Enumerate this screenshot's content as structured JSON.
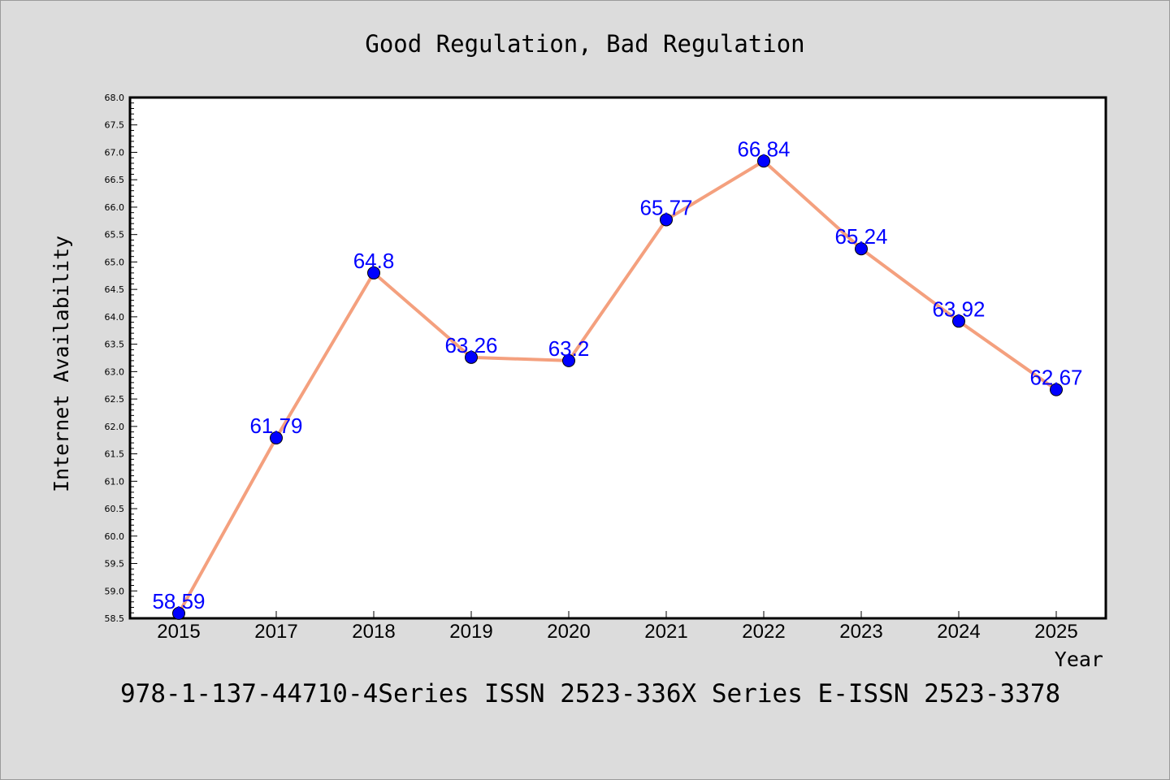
{
  "chart_data": {
    "type": "line",
    "title": "Good Regulation, Bad Regulation",
    "xlabel": "Year",
    "ylabel": "Internet Availability",
    "categories": [
      "2015",
      "2017",
      "2018",
      "2019",
      "2020",
      "2021",
      "2022",
      "2023",
      "2024",
      "2025"
    ],
    "series": [
      {
        "values": [
          58.59,
          61.79,
          64.8,
          63.26,
          63.2,
          65.77,
          66.84,
          65.24,
          63.92,
          62.67
        ],
        "labels": [
          "58.59",
          "61.79",
          "64.8",
          "63.26",
          "63.2",
          "65.77",
          "66.84",
          "65.24",
          "63.92",
          "62.67"
        ],
        "line_color": "#f4a07e",
        "marker_color": "#0000ff"
      }
    ],
    "ylim": [
      58.5,
      68.0
    ],
    "yticks": [
      "58.5",
      "59.0",
      "59.5",
      "60.0",
      "60.5",
      "61.0",
      "61.5",
      "62.0",
      "62.5",
      "63.0",
      "63.5",
      "64.0",
      "64.5",
      "65.0",
      "65.5",
      "66.0",
      "66.5",
      "67.0",
      "67.5",
      "68.0"
    ],
    "grid": false,
    "legend": "none"
  },
  "footer": "978-1-137-44710-4Series ISSN 2523-336X Series E-ISSN 2523-3378",
  "colors": {
    "background": "#dcdcdc",
    "plot_background": "#ffffff",
    "line": "#f4a07e",
    "marker": "#0000ff",
    "data_label": "#0000ff"
  }
}
